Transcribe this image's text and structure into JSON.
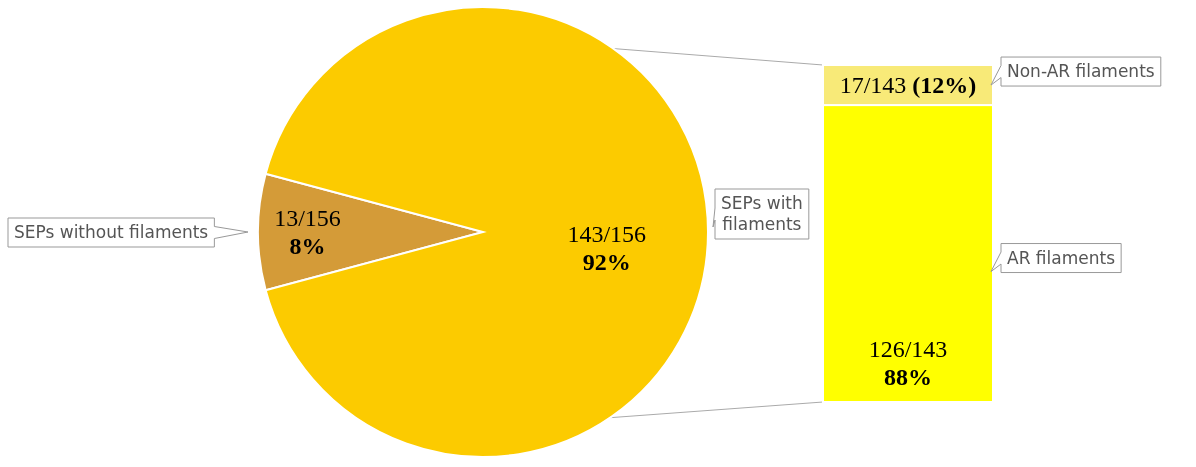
{
  "chart_data": [
    {
      "type": "pie",
      "categories": [
        "SEPs without filaments",
        "SEPs with filaments"
      ],
      "values": [
        13,
        143
      ],
      "colors": [
        "#d49b38",
        "#fccb00"
      ],
      "value_labels": [
        "13/156\n8%",
        "143/156\n92%"
      ]
    },
    {
      "type": "bar",
      "stacked": true,
      "categories": [
        null
      ],
      "series": [
        {
          "name": "AR filaments",
          "color": "#ffff00",
          "values": [
            126
          ],
          "value_labels": [
            "126/143\n88%"
          ]
        },
        {
          "name": "Non-AR filaments",
          "color": "#f8ea78",
          "values": [
            17
          ],
          "value_labels": [
            "17/143 (12%)"
          ]
        }
      ]
    }
  ]
}
